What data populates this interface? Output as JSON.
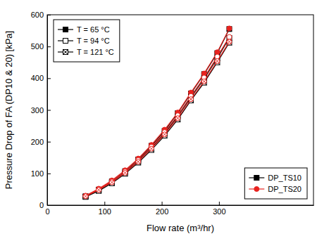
{
  "chart_data": {
    "type": "line",
    "x_label": "Flow rate (m³/hr)",
    "y_label": "Pressure Drop of FA (DP10 & 20) [kPa]",
    "x": [
      67,
      90,
      113,
      136,
      159,
      182,
      205,
      228,
      251,
      274,
      297,
      318
    ],
    "xlim": [
      0,
      465
    ],
    "xticks": [
      0,
      100,
      200,
      300
    ],
    "ylim": [
      0,
      600
    ],
    "yticks": [
      0,
      100,
      200,
      300,
      400,
      500,
      600
    ],
    "grid": false,
    "legend": [
      "top-left",
      "bottom-right"
    ],
    "series": [
      {
        "name": "DP_TS10",
        "label": "T = 65 °C",
        "color": "#000000",
        "marker": "square-filled",
        "values": [
          28,
          49,
          75,
          107,
          144,
          187,
          234,
          290,
          352,
          413,
          479,
          555
        ]
      },
      {
        "name": "DP_TS10",
        "label": "T = 94 °C",
        "color": "#000000",
        "marker": "square-open",
        "values": [
          27,
          47,
          72,
          103,
          139,
          180,
          226,
          280,
          340,
          398,
          463,
          527
        ]
      },
      {
        "name": "DP_TS10",
        "label": "T = 121 °C",
        "color": "#000000",
        "marker": "square-crossed",
        "values": [
          26,
          45,
          69,
          99,
          134,
          174,
          219,
          270,
          330,
          386,
          450,
          512
        ]
      },
      {
        "name": "DP_TS20",
        "label": "T = 65 °C",
        "color": "#e8231f",
        "marker": "circle-filled",
        "values": [
          30,
          52,
          78,
          110,
          147,
          190,
          238,
          292,
          355,
          415,
          482,
          557
        ]
      },
      {
        "name": "DP_TS20",
        "label": "T = 94 °C",
        "color": "#e8231f",
        "marker": "circle-open",
        "values": [
          29,
          50,
          75,
          106,
          142,
          184,
          230,
          283,
          344,
          402,
          468,
          530
        ]
      },
      {
        "name": "DP_TS20",
        "label": "T = 121 °C",
        "color": "#e8231f",
        "marker": "circle-crossed",
        "values": [
          28,
          48,
          72,
          102,
          137,
          178,
          223,
          274,
          334,
          390,
          454,
          515
        ]
      }
    ]
  }
}
